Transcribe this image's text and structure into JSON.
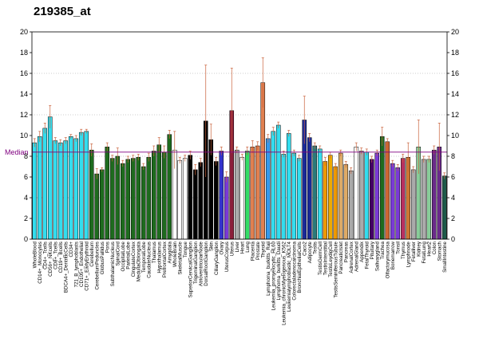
{
  "chart_data": {
    "type": "bar",
    "title": "219385_at",
    "ylim": [
      0,
      20
    ],
    "yticks": [
      0,
      2,
      4,
      6,
      8,
      10,
      12,
      14,
      16,
      18,
      20
    ],
    "median": 8.4,
    "median_label": "Median",
    "grid": "horizontal dotted at 4, 8, 12, 16",
    "categories": [
      "WholeBlood",
      "CD14+_Monocytes",
      "CD4+_Tcells",
      "CD56+_NKcells",
      "CD8+_Tcells",
      "CD19+_Bcells",
      "BDCA4+_DentriticCells",
      "CD34+",
      "721_B_lymphoblasts",
      "CD105+_Endothelial",
      "CD71+_EarlyErythroid",
      "Cerebellum",
      "CerebellumPeduncles",
      "GlobusPallidus",
      "Pons",
      "SubthalamicNucleus",
      "SpinalCord",
      "OccipitalLobe",
      "ParietalLobe",
      "CingulateCortex",
      "MedullaOblongata",
      "TemporalLobe",
      "CaudateNucleus",
      "Thalamus",
      "Hypothalamus",
      "PrefrontalCortex",
      "Amygdala",
      "WholeBrain",
      "SkeletalMuscle",
      "Tongue",
      "SuperiorCervicalGanglion",
      "TrigeminalGanglion",
      "AtrioventricularNode",
      "DorsalRootGanglion",
      "Skin",
      "CiliaryGanglion",
      "Ovary",
      "UterusCorpus",
      "Uterus",
      "Liver",
      "Heart",
      "Lung",
      "Placenta",
      "Prostate",
      "Thyroid",
      "Lymphoma_burkitts_Raji",
      "Leukemia_promyelocytic_HL60",
      "Lymphoma_burkitts_Daudi",
      "Leukemia_chronicMyelogenous_K562",
      "Leukemialymphoblastic_MOLT4",
      "Colorectaladenocarcinoma",
      "BronchialEpithelialCells",
      "Caco2",
      "Adipocyte",
      "Testis",
      "TestisGermCell",
      "TestisInterstitial",
      "TestisLeydigCell",
      "TestisSeminiferousTubule",
      "PancreaticIslet",
      "Pancreas",
      "AdrenalCortex",
      "AdrenalGland",
      "Appendix",
      "FetalThyroid",
      "Pituitary",
      "Salivarygland",
      "Trachea",
      "Olfactorymucosa",
      "Bonemarrow",
      "Tonsil",
      "Thymus",
      "Lymphnode",
      "Fetalliver",
      "Kidney",
      "FetalLung",
      "Heart2",
      "Colon",
      "Stomach",
      "SmallIntestine"
    ],
    "values": [
      9.3,
      9.9,
      10.7,
      11.8,
      9.5,
      9.3,
      9.5,
      9.9,
      9.7,
      10.3,
      10.4,
      8.6,
      6.3,
      6.7,
      8.9,
      7.8,
      8.0,
      7.3,
      7.7,
      7.8,
      7.9,
      7.0,
      7.9,
      8.5,
      9.1,
      8.4,
      10.1,
      8.6,
      7.6,
      7.8,
      8.1,
      6.7,
      7.4,
      11.4,
      9.6,
      7.5,
      8.5,
      6.0,
      12.4,
      8.6,
      7.9,
      8.5,
      8.9,
      9.0,
      15.1,
      9.7,
      10.4,
      11.0,
      8.2,
      10.2,
      8.3,
      7.8,
      11.5,
      9.8,
      9.0,
      8.7,
      7.5,
      8.1,
      7.0,
      8.3,
      7.2,
      6.6,
      8.9,
      8.5,
      8.4,
      7.7,
      8.3,
      9.9,
      9.4,
      7.3,
      6.9,
      7.8,
      7.9,
      6.7,
      8.9,
      7.7,
      7.7,
      8.6,
      8.9,
      6.1
    ],
    "errors": [
      0.4,
      0.5,
      0.5,
      1.1,
      0.3,
      0.3,
      0.3,
      0.2,
      0.3,
      0.3,
      0.2,
      0.6,
      0.5,
      0.2,
      0.4,
      0.3,
      0.8,
      0.3,
      0.3,
      0.3,
      0.3,
      0.3,
      0.4,
      0.5,
      0.7,
      0.6,
      0.4,
      1.8,
      0.3,
      0.3,
      0.4,
      0.5,
      0.4,
      5.4,
      1.5,
      0.4,
      0.4,
      0.5,
      4.1,
      0.3,
      0.3,
      0.4,
      0.6,
      0.4,
      2.4,
      0.4,
      0.4,
      0.3,
      0.3,
      0.3,
      0.3,
      0.3,
      2.3,
      0.4,
      0.3,
      0.3,
      0.4,
      0.3,
      0.3,
      0.3,
      0.3,
      0.3,
      0.4,
      0.3,
      0.3,
      0.3,
      0.3,
      0.9,
      0.3,
      0.3,
      0.3,
      0.4,
      1.4,
      0.3,
      2.6,
      0.3,
      0.3,
      0.4,
      2.3,
      0.3
    ],
    "colors": [
      "#33ddee",
      "#33ddee",
      "#33ddee",
      "#33ddee",
      "#33ddee",
      "#33ddee",
      "#33ddee",
      "#33ddee",
      "#33ddee",
      "#33ddee",
      "#33ddee",
      "#1e6b1e",
      "#1e6b1e",
      "#1e6b1e",
      "#1e6b1e",
      "#1e6b1e",
      "#1e6b1e",
      "#1e6b1e",
      "#1e6b1e",
      "#1e6b1e",
      "#1e6b1e",
      "#1e6b1e",
      "#1e6b1e",
      "#1e6b1e",
      "#1e6b1e",
      "#1e6b1e",
      "#1e6b1e",
      "#ffffff",
      "#ffffff",
      "#ffffff",
      "#000000",
      "#000000",
      "#000000",
      "#000000",
      "#000000",
      "#000000",
      "#3333cc",
      "#7a3ad6",
      "#8b1e3a",
      "#aaaaaa",
      "#ffffff",
      "#33dd66",
      "#e08050",
      "#e08050",
      "#e08050",
      "#3399ee",
      "#33ddee",
      "#33ddee",
      "#33ddee",
      "#33ddee",
      "#33ddee",
      "#33ddee",
      "#1a2a99",
      "#1a2a99",
      "#2a7a7a",
      "#33ddee",
      "#ee9900",
      "#eeaa00",
      "#ee9900",
      "#ddaa66",
      "#ddaa66",
      "#aaaaaa",
      "#ffffff",
      "#aaaaaa",
      "#33ddee",
      "#440066",
      "#7a3ad6",
      "#1e6b1e",
      "#cc6633",
      "#7a3ad6",
      "#7a3ad6",
      "#b83060",
      "#cc7733",
      "#aaaaaa",
      "#88cc99",
      "#aaaaaa",
      "#88cc99",
      "#6a2a8a",
      "#6a2a8a",
      "#1e5a4a"
    ]
  }
}
